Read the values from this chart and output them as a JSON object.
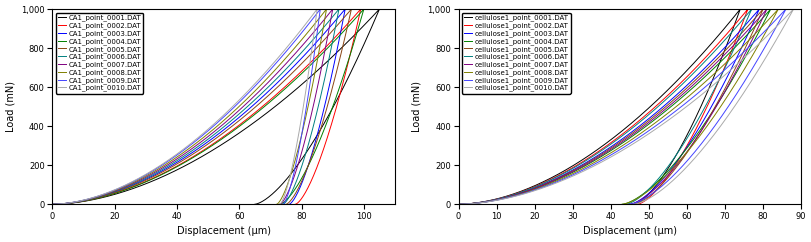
{
  "left": {
    "xlabel": "Displacement (μm)",
    "ylabel": "Load (mN)",
    "xlim": [
      0,
      110
    ],
    "ylim": [
      0,
      1000
    ],
    "xticks": [
      0,
      20,
      40,
      60,
      80,
      100
    ],
    "yticks": [
      0,
      200,
      400,
      600,
      800,
      1000
    ],
    "ytick_labels": [
      "0",
      "200",
      "400",
      "600",
      "800",
      "1,000"
    ],
    "series": [
      {
        "label": "CA1_point_0001.DAT",
        "color": "black",
        "xpeak": 105,
        "xunload": 65,
        "power": 1.8
      },
      {
        "label": "CA1_point_0002.DAT",
        "color": "red",
        "xpeak": 99,
        "xunload": 78,
        "power": 1.8
      },
      {
        "label": "CA1_point_0003.DAT",
        "color": "blue",
        "xpeak": 94,
        "xunload": 76,
        "power": 1.8
      },
      {
        "label": "CA1_point_0004.DAT",
        "color": "green",
        "xpeak": 100,
        "xunload": 73,
        "power": 1.8
      },
      {
        "label": "CA1_point_0005.DAT",
        "color": "#8B4513",
        "xpeak": 96,
        "xunload": 75,
        "power": 1.8
      },
      {
        "label": "CA1_point_0006.DAT",
        "color": "teal",
        "xpeak": 92,
        "xunload": 74,
        "power": 1.8
      },
      {
        "label": "CA1_point_0007.DAT",
        "color": "purple",
        "xpeak": 90,
        "xunload": 73,
        "power": 1.8
      },
      {
        "label": "CA1_point_0008.DAT",
        "color": "olive",
        "xpeak": 88,
        "xunload": 72,
        "power": 1.8
      },
      {
        "label": "CA1_point_0009.DAT",
        "color": "#4444ff",
        "xpeak": 86,
        "xunload": 74,
        "power": 1.8
      },
      {
        "label": "CA1_point_0010.DAT",
        "color": "#aaaaaa",
        "xpeak": 85,
        "xunload": 73,
        "power": 1.8
      }
    ]
  },
  "right": {
    "xlabel": "Displacement (μm)",
    "ylabel": "Load (mN)",
    "xlim": [
      0,
      90
    ],
    "ylim": [
      0,
      1000
    ],
    "xticks": [
      0,
      10,
      20,
      30,
      40,
      50,
      60,
      70,
      80,
      90
    ],
    "yticks": [
      0,
      200,
      400,
      600,
      800,
      1000
    ],
    "ytick_labels": [
      "0",
      "200",
      "400",
      "600",
      "800",
      "1,000"
    ],
    "series": [
      {
        "label": "cellulose1_point_0001.DAT",
        "color": "black",
        "xpeak": 74,
        "xunload": 46,
        "power": 1.8
      },
      {
        "label": "cellulose1_point_0002.DAT",
        "color": "red",
        "xpeak": 76,
        "xunload": 47,
        "power": 1.8
      },
      {
        "label": "cellulose1_point_0003.DAT",
        "color": "blue",
        "xpeak": 79,
        "xunload": 45,
        "power": 1.8
      },
      {
        "label": "cellulose1_point_0004.DAT",
        "color": "green",
        "xpeak": 82,
        "xunload": 43,
        "power": 1.8
      },
      {
        "label": "cellulose1_point_0005.DAT",
        "color": "#8B4513",
        "xpeak": 80,
        "xunload": 46,
        "power": 1.8
      },
      {
        "label": "cellulose1_point_0006.DAT",
        "color": "teal",
        "xpeak": 77,
        "xunload": 44,
        "power": 1.8
      },
      {
        "label": "cellulose1_point_0007.DAT",
        "color": "purple",
        "xpeak": 81,
        "xunload": 45,
        "power": 1.8
      },
      {
        "label": "cellulose1_point_0008.DAT",
        "color": "olive",
        "xpeak": 84,
        "xunload": 43,
        "power": 1.8
      },
      {
        "label": "cellulose1_point_0009.DAT",
        "color": "#4444ff",
        "xpeak": 86,
        "xunload": 45,
        "power": 1.8
      },
      {
        "label": "cellulose1_point_0010.DAT",
        "color": "#aaaaaa",
        "xpeak": 88,
        "xunload": 46,
        "power": 1.8
      }
    ]
  },
  "linewidth": 0.7,
  "legend_fontsize": 5.0,
  "tick_fontsize": 6.0,
  "label_fontsize": 7.0
}
